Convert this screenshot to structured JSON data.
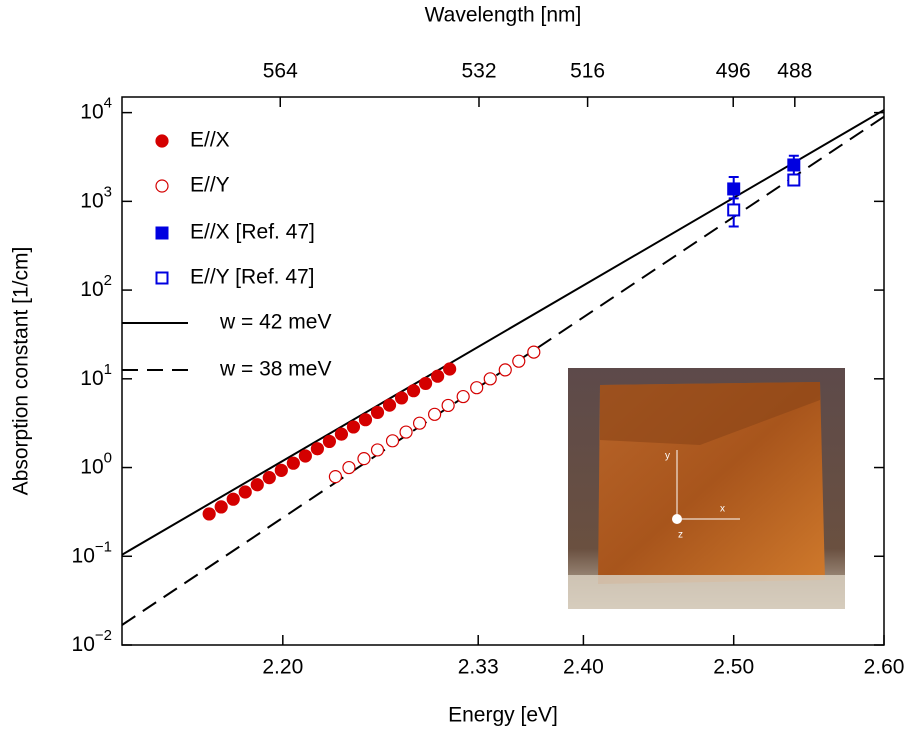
{
  "chart_data": {
    "type": "scatter",
    "xlabel": "Energy [eV]",
    "ylabel": "Absorption constant [1/cm]",
    "x2label": "Wavelength [nm]",
    "xlim": [
      2.093,
      2.6
    ],
    "ylim": [
      0.01,
      15000
    ],
    "log_y": true,
    "xticks": [
      {
        "value": 2.2,
        "label": "2.20"
      },
      2.33,
      {
        "value": 2.4,
        "label": "2.40"
      },
      {
        "value": 2.5,
        "label": "2.50"
      },
      {
        "value": 2.6,
        "label": "2.60"
      }
    ],
    "x2ticks": [
      564,
      532,
      516,
      496,
      488
    ],
    "yticks": [
      {
        "value": 0.01,
        "label": "10",
        "exponent": "−2"
      },
      {
        "value": 0.1,
        "label": "10",
        "exponent": "−1"
      },
      {
        "value": 1,
        "label": "10",
        "exponent": "0"
      },
      {
        "value": 10,
        "label": "10",
        "exponent": "1"
      },
      {
        "value": 100,
        "label": "10",
        "exponent": "2"
      },
      {
        "value": 1000,
        "label": "10",
        "exponent": "3"
      },
      {
        "value": 10000,
        "label": "10",
        "exponent": "4"
      }
    ],
    "series": [
      {
        "name": "E//X",
        "color": "#d40000",
        "marker": "filled-circle",
        "x": [
          2.151,
          2.159,
          2.167,
          2.175,
          2.183,
          2.191,
          2.199,
          2.207,
          2.215,
          2.223,
          2.231,
          2.239,
          2.247,
          2.255,
          2.263,
          2.271,
          2.279,
          2.287,
          2.295,
          2.303,
          2.311
        ],
        "values": [
          0.3,
          0.36,
          0.44,
          0.53,
          0.64,
          0.77,
          0.93,
          1.12,
          1.35,
          1.63,
          1.97,
          2.38,
          2.87,
          3.46,
          4.18,
          5.05,
          6.09,
          7.35,
          8.87,
          10.7,
          12.9
        ]
      },
      {
        "name": "E//Y",
        "color": "#d40000",
        "marker": "open-circle",
        "x": [
          2.235,
          2.244,
          2.254,
          2.263,
          2.273,
          2.282,
          2.291,
          2.301,
          2.31,
          2.32,
          2.329,
          2.338,
          2.348,
          2.357,
          2.367
        ],
        "values": [
          0.79,
          1.0,
          1.26,
          1.58,
          2.0,
          2.51,
          3.16,
          3.98,
          5.01,
          6.31,
          7.94,
          10.0,
          12.6,
          15.8,
          20.0
        ]
      },
      {
        "name": "E//X [Ref. 47]",
        "color": "#0000e0",
        "marker": "filled-square",
        "x": [
          2.5,
          2.54
        ],
        "values": [
          1380,
          2570
        ],
        "errors": [
          500,
          700
        ]
      },
      {
        "name": "E//Y [Ref. 47]",
        "color": "#0000e0",
        "marker": "open-square",
        "x": [
          2.5,
          2.54
        ],
        "values": [
          800,
          1740
        ],
        "errors": [
          280,
          200
        ]
      },
      {
        "name": "w = 42 meV",
        "color": "#000000",
        "marker": "solid-line",
        "x": [
          2.093,
          2.6
        ],
        "values": [
          0.104,
          10700
        ]
      },
      {
        "name": "w = 38 meV",
        "color": "#000000",
        "marker": "dashed-line",
        "x": [
          2.093,
          2.6
        ],
        "values": [
          0.0168,
          9000
        ]
      }
    ],
    "inset": {
      "labels": [
        "y",
        "x",
        "z"
      ]
    }
  }
}
